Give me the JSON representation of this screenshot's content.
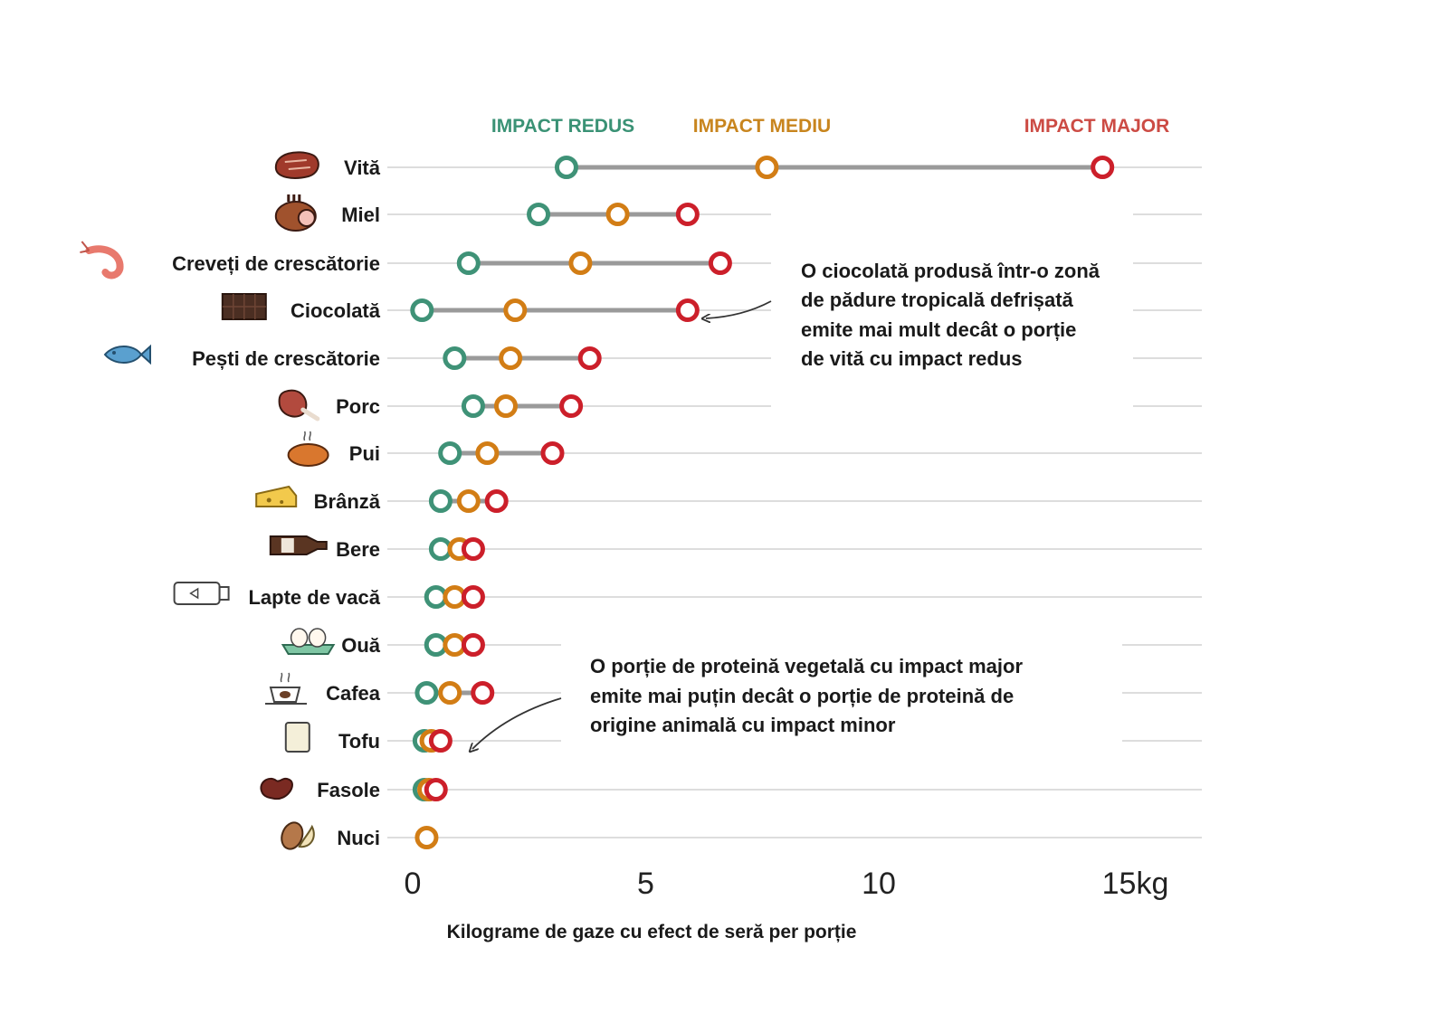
{
  "chart_data": {
    "type": "dot-range",
    "xlabel": "Kilograme de gaze cu efect de seră per porție",
    "xlim": [
      0,
      17
    ],
    "xticks": [
      {
        "value": 0,
        "label": "0"
      },
      {
        "value": 5,
        "label": "5"
      },
      {
        "value": 10,
        "label": "10"
      },
      {
        "value": 15,
        "label": "15kg"
      }
    ],
    "legend": [
      {
        "key": "low",
        "name": "IMPACT REDUS",
        "color": "#3a9275"
      },
      {
        "key": "mid",
        "name": "IMPACT MEDIU",
        "color": "#c8851e"
      },
      {
        "key": "high",
        "name": "IMPACT MAJOR",
        "color": "#cc4b44"
      }
    ],
    "marker_colors": {
      "low": "#3f9277",
      "mid": "#d27d15",
      "high": "#cc1f2a"
    },
    "grid": true,
    "categories": [
      {
        "name": "Vită",
        "icon": "steak-icon",
        "low": 3.3,
        "mid": 7.6,
        "high": 14.8
      },
      {
        "name": "Miel",
        "icon": "lamb-roast-icon",
        "low": 2.7,
        "mid": 4.4,
        "high": 5.9
      },
      {
        "name": "Creveți de crescătorie",
        "icon": "shrimp-icon",
        "low": 1.2,
        "mid": 3.6,
        "high": 6.6
      },
      {
        "name": "Ciocolată",
        "icon": "chocolate-bar-icon",
        "low": 0.2,
        "mid": 2.2,
        "high": 5.9
      },
      {
        "name": "Pești de crescătorie",
        "icon": "fish-icon",
        "low": 0.9,
        "mid": 2.1,
        "high": 3.8
      },
      {
        "name": "Porc",
        "icon": "ham-icon",
        "low": 1.3,
        "mid": 2.0,
        "high": 3.4
      },
      {
        "name": "Pui",
        "icon": "roast-chicken-icon",
        "low": 0.8,
        "mid": 1.6,
        "high": 3.0
      },
      {
        "name": "Brânză",
        "icon": "cheese-icon",
        "low": 0.6,
        "mid": 1.2,
        "high": 1.8
      },
      {
        "name": "Bere",
        "icon": "beer-bottle-icon",
        "low": 0.6,
        "mid": 1.0,
        "high": 1.3
      },
      {
        "name": "Lapte de vacă",
        "icon": "milk-bottle-icon",
        "low": 0.5,
        "mid": 0.9,
        "high": 1.3
      },
      {
        "name": "Ouă",
        "icon": "eggs-icon",
        "low": 0.5,
        "mid": 0.9,
        "high": 1.3
      },
      {
        "name": "Cafea",
        "icon": "coffee-cup-icon",
        "low": 0.3,
        "mid": 0.8,
        "high": 1.5
      },
      {
        "name": "Tofu",
        "icon": "tofu-icon",
        "low": 0.25,
        "mid": 0.4,
        "high": 0.6
      },
      {
        "name": "Fasole",
        "icon": "bean-icon",
        "low": 0.25,
        "mid": 0.35,
        "high": 0.5
      },
      {
        "name": "Nuci",
        "icon": "nuts-icon",
        "low": null,
        "mid": 0.3,
        "high": null
      }
    ],
    "annotations": [
      {
        "name": "chocolate-annotation",
        "lines": [
          "O ciocolată produsă într-o zonă",
          "de pădure tropicală defrișată",
          "emite mai mult decât o porție",
          "de vită cu impact redus"
        ]
      },
      {
        "name": "plant-protein-annotation",
        "lines": [
          "O porție de proteină vegetală cu impact major",
          "emite mai puțin decât o porție de proteină de",
          "origine animală cu impact minor"
        ]
      }
    ]
  }
}
